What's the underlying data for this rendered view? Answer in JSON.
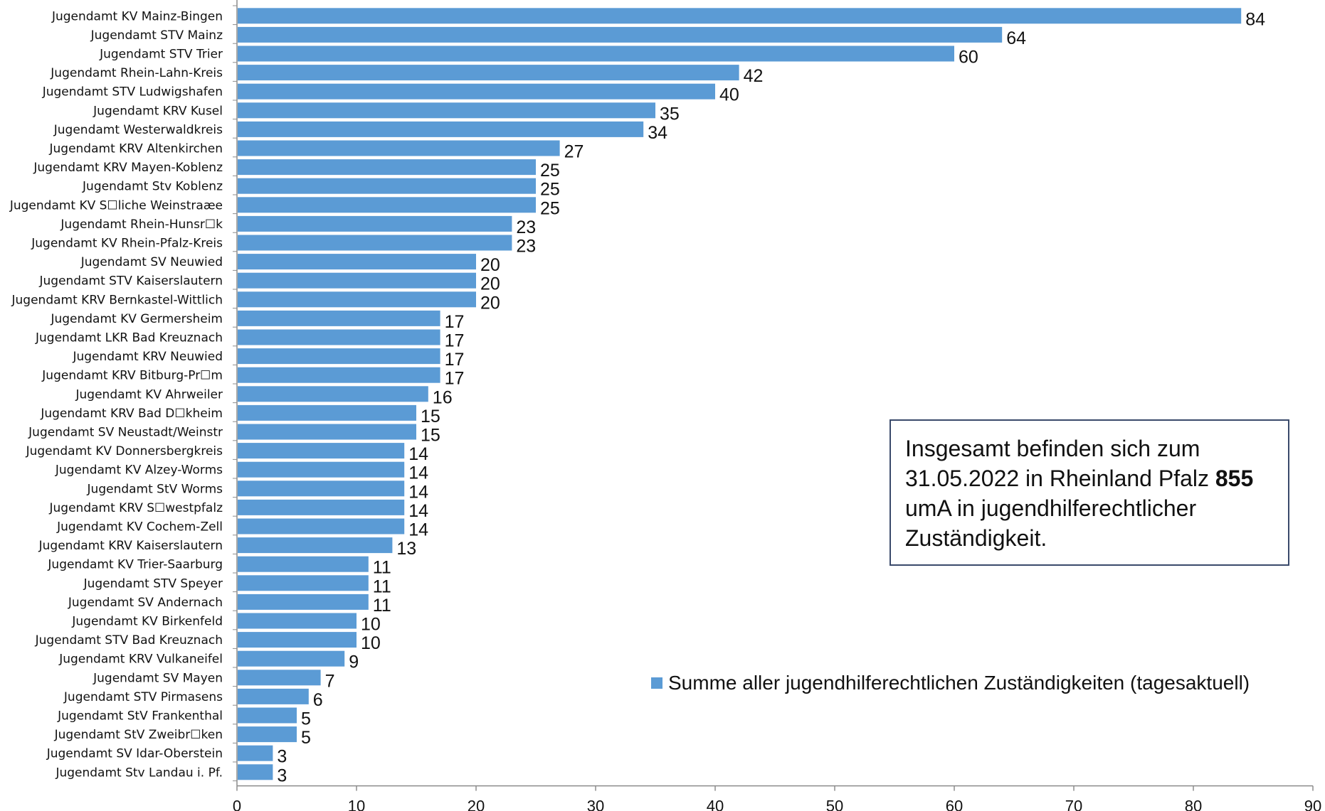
{
  "chart_data": {
    "type": "bar",
    "orientation": "horizontal",
    "categories": [
      "Jugendamt KV Mainz-Bingen",
      "Jugendamt STV Mainz",
      "Jugendamt STV Trier",
      "Jugendamt Rhein-Lahn-Kreis",
      "Jugendamt STV Ludwigshafen",
      "Jugendamt KRV Kusel",
      "Jugendamt Westerwaldkreis",
      "Jugendamt KRV Altenkirchen",
      "Jugendamt KRV Mayen-Koblenz",
      "Jugendamt Stv Koblenz",
      "Jugendamt KV S☐liche Weinstraæe",
      "Jugendamt Rhein-Hunsr☐k",
      "Jugendamt KV Rhein-Pfalz-Kreis",
      "Jugendamt SV Neuwied",
      "Jugendamt STV Kaiserslautern",
      "Jugendamt KRV Bernkastel-Wittlich",
      "Jugendamt KV Germersheim",
      "Jugendamt LKR Bad Kreuznach",
      "Jugendamt KRV Neuwied",
      "Jugendamt KRV Bitburg-Pr☐m",
      "Jugendamt KV Ahrweiler",
      "Jugendamt KRV Bad D☐kheim",
      "Jugendamt SV Neustadt/Weinstr",
      "Jugendamt KV Donnersbergkreis",
      "Jugendamt KV Alzey-Worms",
      "Jugendamt StV Worms",
      "Jugendamt KRV S☐westpfalz",
      "Jugendamt KV Cochem-Zell",
      "Jugendamt KRV Kaiserslautern",
      "Jugendamt KV Trier-Saarburg",
      "Jugendamt STV Speyer",
      "Jugendamt SV Andernach",
      "Jugendamt KV Birkenfeld",
      "Jugendamt STV Bad Kreuznach",
      "Jugendamt KRV Vulkaneifel",
      "Jugendamt SV Mayen",
      "Jugendamt STV Pirmasens",
      "Jugendamt StV Frankenthal",
      "Jugendamt StV Zweibr☐ken",
      "Jugendamt SV Idar-Oberstein",
      "Jugendamt Stv Landau i. Pf."
    ],
    "series": [
      {
        "name": "Summe aller jugendhilferechtlichen Zuständigkeiten (tagesaktuell)",
        "color": "#5b9bd5",
        "values": [
          84,
          64,
          60,
          42,
          40,
          35,
          34,
          27,
          25,
          25,
          25,
          23,
          23,
          20,
          20,
          20,
          17,
          17,
          17,
          17,
          16,
          15,
          15,
          14,
          14,
          14,
          14,
          14,
          13,
          11,
          11,
          11,
          10,
          10,
          9,
          7,
          6,
          5,
          5,
          3,
          3
        ]
      }
    ],
    "xlim": [
      0,
      90
    ],
    "xticks": [
      0,
      10,
      20,
      30,
      40,
      50,
      60,
      70,
      80,
      90
    ],
    "xlabel": "",
    "ylabel": "",
    "title": "",
    "grid": false,
    "legend_position": "bottom-right"
  },
  "info_box": {
    "line1": "Insgesamt befinden sich zum",
    "line2_prefix": "31.05.2022 in Rheinland Pfalz ",
    "line2_bold": "855",
    "line3": "umA in jugendhilferechtlicher",
    "line4": "Zuständigkeit."
  },
  "legend": {
    "label": "Summe aller jugendhilferechtlichen Zuständigkeiten (tagesaktuell)",
    "color": "#5b9bd5"
  }
}
